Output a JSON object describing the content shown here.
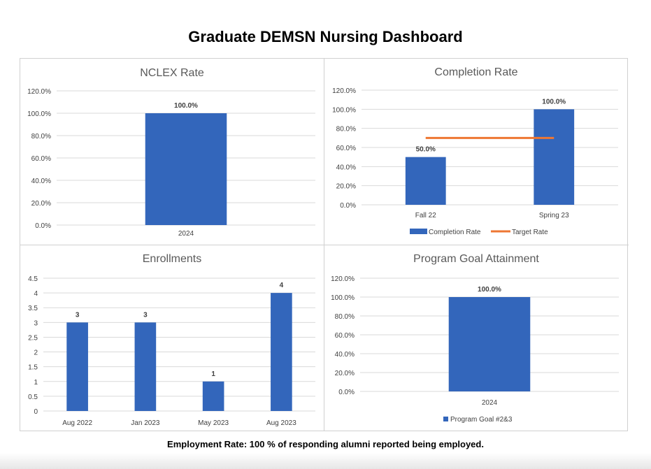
{
  "page_title": "Graduate DEMSN Nursing Dashboard",
  "footer": "Employment Rate: 100 % of  responding alumni reported being employed.",
  "colors": {
    "bar": "#3366bb",
    "target": "#ee7733",
    "grid": "#d9d9d9",
    "text": "#404040"
  },
  "chart_data": [
    {
      "type": "bar",
      "title": "NCLEX Rate",
      "categories": [
        "2024"
      ],
      "series": [
        {
          "values": [
            100.0
          ]
        }
      ],
      "data_labels": [
        "100.0%"
      ],
      "ylim": [
        0,
        120
      ],
      "yticks": [
        "0.0%",
        "20.0%",
        "40.0%",
        "60.0%",
        "80.0%",
        "100.0%",
        "120.0%"
      ],
      "grid": true,
      "legend": null
    },
    {
      "type": "bar",
      "title": "Completion Rate",
      "categories": [
        "Fall 22",
        "Spring 23"
      ],
      "series": [
        {
          "name": "Completion Rate",
          "values": [
            50.0,
            100.0
          ]
        },
        {
          "name": "Target Rate",
          "type": "line",
          "values": [
            70.0,
            70.0
          ]
        }
      ],
      "data_labels": [
        "50.0%",
        "100.0%"
      ],
      "ylim": [
        0,
        120
      ],
      "yticks": [
        "0.0%",
        "20.0%",
        "40.0%",
        "60.0%",
        "80.0%",
        "100.0%",
        "120.0%"
      ],
      "grid": true,
      "legend": "bottom"
    },
    {
      "type": "bar",
      "title": "Enrollments",
      "categories": [
        "Aug 2022",
        "Jan 2023",
        "May 2023",
        "Aug 2023"
      ],
      "series": [
        {
          "values": [
            3,
            3,
            1,
            4
          ]
        }
      ],
      "data_labels": [
        "3",
        "3",
        "1",
        "4"
      ],
      "ylim": [
        0,
        4.5
      ],
      "yticks": [
        "0",
        "0.5",
        "1",
        "1.5",
        "2",
        "2.5",
        "3",
        "3.5",
        "4",
        "4.5"
      ],
      "grid": true,
      "legend": null
    },
    {
      "type": "bar",
      "title": "Program Goal Attainment",
      "categories": [
        "2024"
      ],
      "series": [
        {
          "name": "Program Goal #2&3",
          "values": [
            100.0
          ]
        }
      ],
      "data_labels": [
        "100.0%"
      ],
      "ylim": [
        0,
        120
      ],
      "yticks": [
        "0.0%",
        "20.0%",
        "40.0%",
        "60.0%",
        "80.0%",
        "100.0%",
        "120.0%"
      ],
      "grid": true,
      "legend": "bottom"
    }
  ]
}
